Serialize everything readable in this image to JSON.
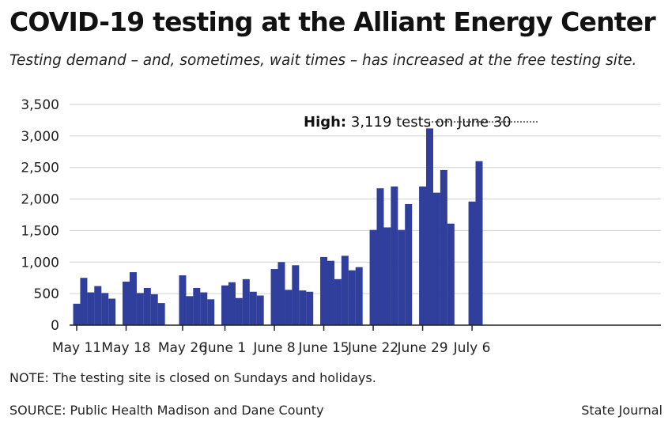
{
  "title": "COVID-19 testing at the Alliant Energy Center",
  "subtitle": "Testing demand – and, sometimes, wait times – has increased at the free testing site.",
  "note": "NOTE: The testing site is closed on Sundays and holidays.",
  "source": "SOURCE: Public Health Madison and Dane County",
  "credit": "State Journal",
  "colors": {
    "bar": "#2f3f9b",
    "grid": "#d0d0d0",
    "axis": "#222222",
    "annotation_line": "#222222"
  },
  "chart_data": {
    "type": "bar",
    "title": "COVID-19 testing at the Alliant Energy Center",
    "xlabel": "",
    "ylabel": "",
    "ylim": [
      0,
      3500
    ],
    "yticks": [
      0,
      500,
      1000,
      1500,
      2000,
      2500,
      3000,
      3500
    ],
    "ytick_labels": [
      "0",
      "500",
      "1,000",
      "1,500",
      "2,000",
      "2,500",
      "3,000",
      "3,500"
    ],
    "grid": "horizontal",
    "categories": [
      "May 11",
      "May 12",
      "May 13",
      "May 14",
      "May 15",
      "May 16",
      "May 17",
      "May 18",
      "May 19",
      "May 20",
      "May 21",
      "May 22",
      "May 23",
      "May 24",
      "May 25",
      "May 26",
      "May 27",
      "May 28",
      "May 29",
      "May 30",
      "May 31",
      "June 1",
      "June 2",
      "June 3",
      "June 4",
      "June 5",
      "June 6",
      "June 7",
      "June 8",
      "June 9",
      "June 10",
      "June 11",
      "June 12",
      "June 13",
      "June 14",
      "June 15",
      "June 16",
      "June 17",
      "June 18",
      "June 19",
      "June 20",
      "June 21",
      "June 22",
      "June 23",
      "June 24",
      "June 25",
      "June 26",
      "June 27",
      "June 28",
      "June 29",
      "June 30",
      "July 1",
      "July 2",
      "July 3",
      "July 4",
      "July 5",
      "July 6",
      "July 7"
    ],
    "values": [
      340,
      750,
      520,
      620,
      510,
      420,
      null,
      690,
      840,
      510,
      590,
      490,
      350,
      null,
      null,
      790,
      460,
      590,
      520,
      410,
      null,
      630,
      680,
      430,
      730,
      530,
      470,
      null,
      890,
      1000,
      560,
      950,
      550,
      530,
      null,
      1080,
      1020,
      730,
      1100,
      870,
      920,
      null,
      1510,
      2170,
      1550,
      2200,
      1510,
      1920,
      null,
      2200,
      3119,
      2100,
      2460,
      1610,
      null,
      null,
      1960,
      2600
    ],
    "x_tick_labels": [
      {
        "label": "May 11",
        "index": 0
      },
      {
        "label": "May 18",
        "index": 7
      },
      {
        "label": "May 26",
        "index": 15
      },
      {
        "label": "June 1",
        "index": 21
      },
      {
        "label": "June 8",
        "index": 28
      },
      {
        "label": "June 15",
        "index": 35
      },
      {
        "label": "June 22",
        "index": 42
      },
      {
        "label": "June 29",
        "index": 49
      },
      {
        "label": "July 6",
        "index": 56
      }
    ],
    "annotation": {
      "bold": "High:",
      "text": " 3,119 tests on June 30",
      "index": 50,
      "value": 3119
    }
  }
}
